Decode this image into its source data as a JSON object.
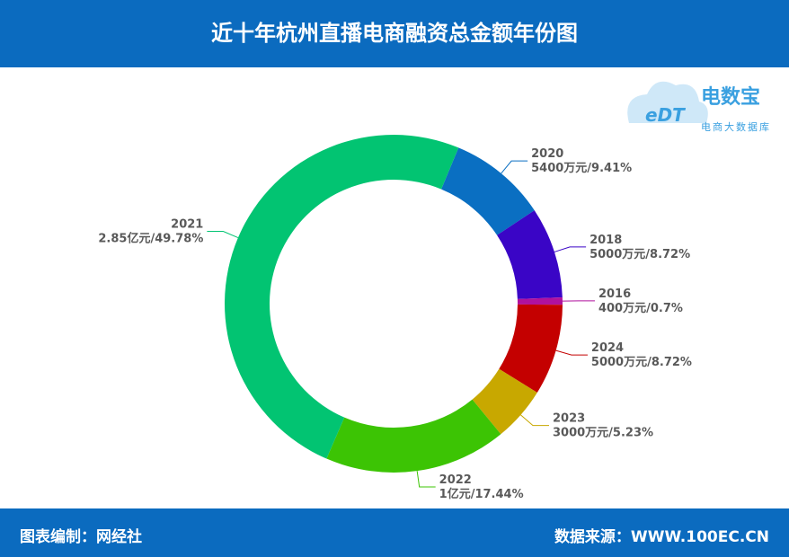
{
  "header": {
    "title": "近十年杭州直播电商融资总金额年份图"
  },
  "logo": {
    "mark": "eDT",
    "name": "电数宝",
    "subtitle": "电商大数据库"
  },
  "footer": {
    "left": "图表编制：网经社",
    "right": "数据来源：WWW.100EC.CN"
  },
  "chart_data": {
    "type": "pie",
    "categories": [
      "2020",
      "2018",
      "2016",
      "2024",
      "2023",
      "2022",
      "2021"
    ],
    "values": [
      9.41,
      8.72,
      0.7,
      8.72,
      5.23,
      17.44,
      49.78
    ],
    "value_labels": [
      "5400万元/9.41%",
      "5000万元/8.72%",
      "400万元/0.7%",
      "5000万元/8.72%",
      "3000万元/5.23%",
      "1亿元/17.44%",
      "2.85亿元/49.78%"
    ],
    "colors": [
      "#0a6fc2",
      "#3a05c6",
      "#b0119e",
      "#c40000",
      "#c8a800",
      "#3cc404",
      "#02c472"
    ]
  }
}
